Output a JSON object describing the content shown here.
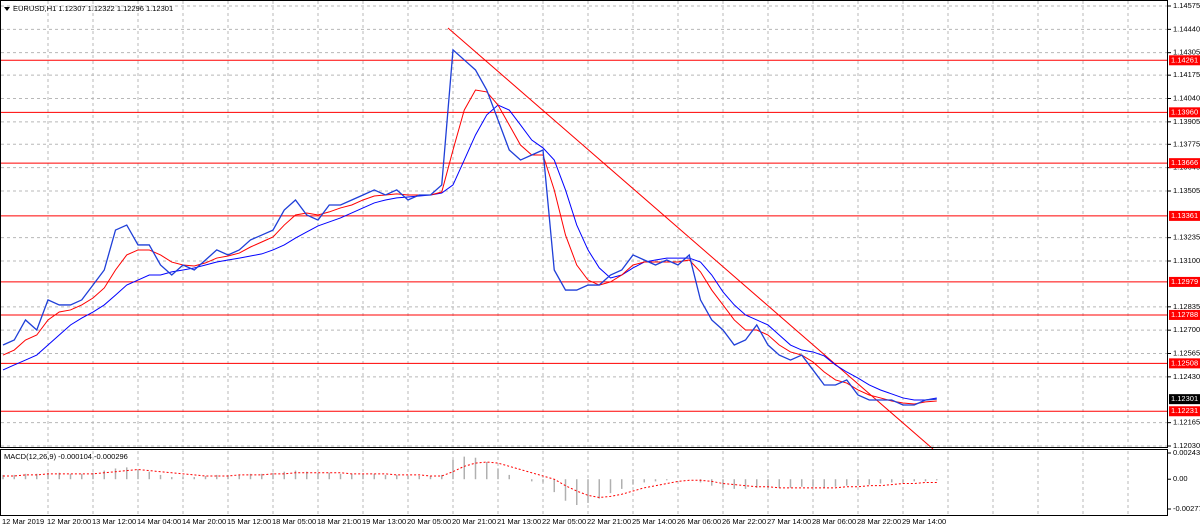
{
  "chart_data": [
    {
      "type": "line",
      "title": "EURUSD,H1  1.12307 1.12322 1.12296 1.12301",
      "categories": [
        "12 Mar 2019",
        null,
        null,
        null,
        "12 Mar 20:00",
        null,
        null,
        null,
        "13 Mar 12:00",
        null,
        null,
        null,
        "14 Mar 04:00",
        null,
        null,
        null,
        "14 Mar 20:00",
        null,
        null,
        null,
        "15 Mar 12:00",
        null,
        null,
        null,
        "18 Mar 05:00",
        null,
        null,
        null,
        "18 Mar 21:00",
        null,
        null,
        null,
        "19 Mar 13:00",
        null,
        null,
        null,
        "20 Mar 05:00",
        null,
        null,
        null,
        "20 Mar 21:00",
        null,
        null,
        null,
        "21 Mar 13:00",
        null,
        null,
        null,
        "22 Mar 05:00",
        null,
        null,
        null,
        "22 Mar 21:00",
        null,
        null,
        null,
        "25 Mar 14:00",
        null,
        null,
        null,
        "26 Mar 06:00",
        null,
        null,
        null,
        "26 Mar 22:00",
        null,
        null,
        null,
        "27 Mar 14:00",
        null,
        null,
        null,
        "28 Mar 06:00",
        null,
        null,
        null,
        "28 Mar 22:00",
        null,
        null,
        null,
        "29 Mar 14:00",
        null,
        null,
        null
      ],
      "series": [
        {
          "color": "#1f3fd8",
          "values": [
            1.12614,
            1.12643,
            1.12759,
            1.12701,
            1.12875,
            1.12846,
            1.12846,
            1.12875,
            1.12961,
            1.13048,
            1.13279,
            1.13308,
            1.13193,
            1.13193,
            1.13077,
            1.13019,
            1.13077,
            1.13048,
            1.13106,
            1.13164,
            1.13135,
            1.13164,
            1.13222,
            1.1325,
            1.13279,
            1.13395,
            1.13453,
            1.13366,
            1.13337,
            1.13424,
            1.13424,
            1.13453,
            1.13482,
            1.13511,
            1.13482,
            1.13511,
            1.13453,
            1.13482,
            1.13482,
            1.1354,
            1.14321,
            1.14263,
            1.14205,
            1.14089,
            1.13916,
            1.13742,
            1.13684,
            1.13713,
            1.13742,
            1.13048,
            1.12932,
            1.12932,
            1.12961,
            1.12961,
            1.13019,
            1.13048,
            1.13135,
            1.13106,
            1.13077,
            1.13106,
            1.13077,
            1.13135,
            1.12875,
            1.12759,
            1.12701,
            1.12614,
            1.12643,
            1.1273,
            1.12614,
            1.12556,
            1.12527,
            1.12556,
            1.1247,
            1.12383,
            1.12383,
            1.12412,
            1.12325,
            1.12296,
            1.12296,
            1.12296,
            1.12267,
            1.12267,
            1.12296,
            1.12301
          ]
        },
        {
          "color": "#ff0000",
          "values": [
            1.12556,
            1.12585,
            1.12643,
            1.12672,
            1.12759,
            1.12805,
            1.12817,
            1.12846,
            1.12886,
            1.12944,
            1.13048,
            1.13135,
            1.13164,
            1.13164,
            1.13135,
            1.13094,
            1.13077,
            1.13071,
            1.13089,
            1.13117,
            1.13129,
            1.13146,
            1.13181,
            1.1321,
            1.13239,
            1.13308,
            1.13366,
            1.13378,
            1.13366,
            1.13384,
            1.13407,
            1.13424,
            1.13453,
            1.13476,
            1.13482,
            1.13488,
            1.13482,
            1.13482,
            1.13482,
            1.13499,
            1.13742,
            1.13973,
            1.14089,
            1.14078,
            1.14002,
            1.13887,
            1.13771,
            1.13713,
            1.13713,
            1.13511,
            1.1325,
            1.13077,
            1.1299,
            1.12961,
            1.12979,
            1.13019,
            1.13077,
            1.13094,
            1.13094,
            1.13094,
            1.13094,
            1.13106,
            1.13037,
            1.12932,
            1.12846,
            1.12759,
            1.12701,
            1.12701,
            1.12672,
            1.12614,
            1.12574,
            1.12556,
            1.12516,
            1.12458,
            1.12412,
            1.12394,
            1.12354,
            1.12325,
            1.12308,
            1.1229,
            1.12279,
            1.12273,
            1.12285,
            1.1229
          ]
        },
        {
          "color": "#0000ff",
          "values": [
            1.1247,
            1.12499,
            1.12527,
            1.12556,
            1.12614,
            1.12672,
            1.1273,
            1.1277,
            1.12805,
            1.12846,
            1.12903,
            1.12961,
            1.1299,
            1.13019,
            1.13019,
            1.13037,
            1.13048,
            1.1306,
            1.13077,
            1.13094,
            1.13106,
            1.13117,
            1.13129,
            1.13141,
            1.13164,
            1.13193,
            1.13233,
            1.13268,
            1.13303,
            1.13326,
            1.13349,
            1.13378,
            1.13407,
            1.13436,
            1.13453,
            1.13465,
            1.1347,
            1.13476,
            1.13482,
            1.13493,
            1.1354,
            1.13684,
            1.13829,
            1.13945,
            1.14002,
            1.13973,
            1.13887,
            1.138,
            1.13754,
            1.13684,
            1.13511,
            1.13308,
            1.13164,
            1.1306,
            1.13002,
            1.13019,
            1.1306,
            1.13094,
            1.13106,
            1.13117,
            1.13117,
            1.13117,
            1.13094,
            1.13019,
            1.12921,
            1.12846,
            1.12788,
            1.12759,
            1.1273,
            1.12672,
            1.12614,
            1.12585,
            1.12574,
            1.12551,
            1.12499,
            1.12458,
            1.12423,
            1.12383,
            1.12354,
            1.12331,
            1.12308,
            1.12296,
            1.12296,
            1.12308
          ]
        }
      ],
      "ylim": [
        1.1203,
        1.14575
      ],
      "yticks": [
        {
          "value": 1.14575,
          "label": "1.14575"
        },
        {
          "value": 1.1444,
          "label": "1.14440"
        },
        {
          "value": 1.14305,
          "label": "1.14305"
        },
        {
          "value": 1.14175,
          "label": "1.14175"
        },
        {
          "value": 1.1404,
          "label": "1.14040"
        },
        {
          "value": 1.13905,
          "label": "1.13905"
        },
        {
          "value": 1.13775,
          "label": "1.13775"
        },
        {
          "value": 1.1364,
          "label": "1.13640"
        },
        {
          "value": 1.13505,
          "label": "1.13505"
        },
        {
          "value": 1.13235,
          "label": "1.13235"
        },
        {
          "value": 1.131,
          "label": "1.13100"
        },
        {
          "value": 1.12835,
          "label": "1.12835"
        },
        {
          "value": 1.127,
          "label": "1.12700"
        },
        {
          "value": 1.12565,
          "label": "1.12565"
        },
        {
          "value": 1.1243,
          "label": "1.12430"
        },
        {
          "value": 1.12165,
          "label": "1.12165"
        },
        {
          "value": 1.1203,
          "label": "1.12030"
        }
      ],
      "levels": [
        {
          "value": 1.14261,
          "label": "1.14261"
        },
        {
          "value": 1.1396,
          "label": "1.13960"
        },
        {
          "value": 1.13666,
          "label": "1.13666"
        },
        {
          "value": 1.13361,
          "label": "1.13361"
        },
        {
          "value": 1.12979,
          "label": "1.12979"
        },
        {
          "value": 1.12788,
          "label": "1.12788"
        },
        {
          "value": 1.12508,
          "label": "1.12508"
        },
        {
          "value": 1.12231,
          "label": "1.12231"
        }
      ],
      "levels_color": "#ff0000",
      "current_price": {
        "value": 1.12301,
        "label": "1.12301"
      },
      "grid": true
    },
    {
      "type": "bar",
      "title": "MACD(12,26,9) -0.000104 -0.000296",
      "series": [
        {
          "color": "#b0b0b0",
          "values": [
            0.0004,
            0.0004,
            0.0005,
            0.0005,
            0.0006,
            0.0006,
            0.0005,
            0.0005,
            0.0006,
            0.0008,
            0.001,
            0.0011,
            0.0009,
            0.0007,
            0.0004,
            0.0002,
            0.0002,
            0.0002,
            0.0003,
            0.0004,
            0.0004,
            0.0004,
            0.0005,
            0.0005,
            0.0006,
            0.0007,
            0.0008,
            0.0007,
            0.0006,
            0.0006,
            0.0005,
            0.0005,
            0.0005,
            0.0005,
            0.0004,
            0.0004,
            0.0003,
            0.0003,
            0.0003,
            0.0004,
            0.0018,
            0.0021,
            0.002,
            0.0016,
            0.001,
            0.0004,
            0.0,
            -0.0002,
            -0.0003,
            -0.0012,
            -0.002,
            -0.0024,
            -0.0022,
            -0.0018,
            -0.0013,
            -0.0009,
            -0.0005,
            -0.0003,
            -0.0002,
            -0.0001,
            0.0,
            0.0,
            -0.0003,
            -0.0006,
            -0.0008,
            -0.0009,
            -0.0009,
            -0.0008,
            -0.0008,
            -0.0008,
            -0.0008,
            -0.0007,
            -0.0007,
            -0.0008,
            -0.0007,
            -0.0006,
            -0.0006,
            -0.0005,
            -0.0004,
            -0.0003,
            -0.0003,
            -0.0002,
            -0.0002,
            -0.0001
          ]
        },
        {
          "color": "#ff0000",
          "type": "line",
          "values": [
            0.0003,
            0.0003,
            0.0004,
            0.0004,
            0.0005,
            0.0005,
            0.0005,
            0.0005,
            0.0005,
            0.0006,
            0.0007,
            0.0008,
            0.0009,
            0.0008,
            0.0007,
            0.0006,
            0.0005,
            0.0004,
            0.0003,
            0.0003,
            0.0003,
            0.0004,
            0.0004,
            0.0004,
            0.0005,
            0.0005,
            0.0006,
            0.0006,
            0.0006,
            0.0006,
            0.0006,
            0.0005,
            0.0005,
            0.0005,
            0.0005,
            0.0004,
            0.0004,
            0.0004,
            0.0003,
            0.0003,
            0.0007,
            0.0012,
            0.0015,
            0.0016,
            0.0015,
            0.0012,
            0.0009,
            0.0006,
            0.0003,
            0.0,
            -0.0006,
            -0.0011,
            -0.0015,
            -0.0017,
            -0.0016,
            -0.0014,
            -0.0011,
            -0.0008,
            -0.0006,
            -0.0004,
            -0.0002,
            -0.0001,
            -0.0001,
            -0.0002,
            -0.0004,
            -0.0005,
            -0.0006,
            -0.0007,
            -0.0007,
            -0.0008,
            -0.0008,
            -0.0008,
            -0.0008,
            -0.0008,
            -0.0008,
            -0.0007,
            -0.0007,
            -0.0006,
            -0.0006,
            -0.0005,
            -0.0004,
            -0.0004,
            -0.0003,
            -0.0003
          ]
        }
      ],
      "ylim": [
        -0.00277,
        0.002438
      ],
      "yticks": [
        {
          "value": 0.002438,
          "label": "0.002438"
        },
        {
          "value": 0,
          "label": "0.00"
        },
        {
          "value": -0.00277,
          "label": "-0.00277"
        }
      ]
    }
  ]
}
